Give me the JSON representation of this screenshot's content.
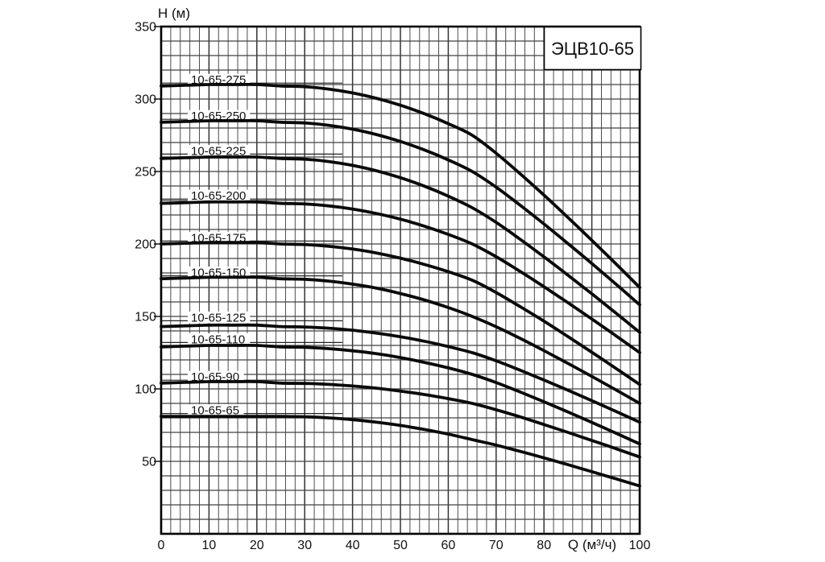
{
  "chart_data": {
    "type": "line",
    "title": "ЭЦВ10-65",
    "xlabel": "Q (м³/ч)",
    "ylabel": "H (м)",
    "xlim": [
      0,
      100
    ],
    "ylim": [
      0,
      350
    ],
    "x_ticks": [
      0,
      10,
      20,
      30,
      40,
      50,
      60,
      70,
      80,
      100
    ],
    "y_ticks": [
      50,
      100,
      150,
      200,
      250,
      300,
      350
    ],
    "grid": {
      "on": true,
      "x_minor_step": 2,
      "x_major_step": 10,
      "y_step": 10
    },
    "legend_position": "inline curve labels above each curve",
    "x_values": [
      0,
      5,
      10,
      15,
      20,
      25,
      30,
      35,
      40,
      45,
      50,
      55,
      60,
      65,
      70,
      75,
      80,
      85,
      90,
      95,
      100
    ],
    "series": [
      {
        "name": "10-65-275",
        "label_h": 311,
        "values": [
          309,
          309.5,
          310,
          310,
          310,
          309,
          308.5,
          306.9,
          304.2,
          300.5,
          295.7,
          289.9,
          283,
          275,
          262.6,
          248.5,
          233.7,
          218.3,
          202.5,
          186.4,
          170
        ]
      },
      {
        "name": "10-65-250",
        "label_h": 286,
        "values": [
          284,
          284.5,
          285,
          285,
          285,
          284,
          283.5,
          281.9,
          279.2,
          275.5,
          270.7,
          264.9,
          258,
          250,
          239.2,
          226.8,
          213.8,
          200.3,
          186.5,
          172.4,
          158
        ]
      },
      {
        "name": "10-65-225",
        "label_h": 262,
        "values": [
          259,
          259.5,
          260,
          260,
          260,
          259,
          258.5,
          256.9,
          254.2,
          250.5,
          245.7,
          239.9,
          233,
          225,
          214.9,
          203.3,
          191.1,
          178.5,
          165.6,
          152.4,
          139
        ]
      },
      {
        "name": "10-65-200",
        "label_h": 231,
        "values": [
          228,
          228.5,
          229,
          229,
          229,
          228,
          227.6,
          226.3,
          224.1,
          221,
          217.1,
          212.3,
          206.6,
          200,
          191.2,
          181.1,
          170.5,
          159.5,
          148.2,
          136.7,
          125
        ]
      },
      {
        "name": "10-65-175",
        "label_h": 202,
        "values": [
          200,
          200.5,
          201,
          201,
          201,
          200,
          199.6,
          198.4,
          196.5,
          193.8,
          190.2,
          185.9,
          180.9,
          175,
          166.5,
          156.8,
          146.7,
          136.1,
          125.3,
          114.2,
          103
        ]
      },
      {
        "name": "10-65-150",
        "label_h": 178,
        "values": [
          176,
          176.5,
          177,
          177,
          177,
          176,
          175.6,
          174.4,
          172.3,
          169.5,
          165.8,
          161.4,
          156.1,
          150,
          142.9,
          134.9,
          126.4,
          117.6,
          108.6,
          99.4,
          90
        ]
      },
      {
        "name": "10-65-125",
        "label_h": 147,
        "values": [
          143,
          143.5,
          144,
          144,
          144,
          143,
          142.7,
          141.9,
          140.5,
          138.5,
          136,
          132.9,
          129.2,
          125,
          119.4,
          112.9,
          106.1,
          99.1,
          91.9,
          84.5,
          77
        ]
      },
      {
        "name": "10-65-110",
        "label_h": 132,
        "values": [
          129,
          129.5,
          130,
          130,
          130,
          129,
          128.7,
          127.8,
          126.3,
          124.3,
          121.6,
          118.3,
          114.5,
          110,
          104.4,
          97.9,
          91.1,
          84.1,
          76.9,
          69.5,
          62
        ]
      },
      {
        "name": "10-65-90",
        "label_h": 106,
        "values": [
          104,
          104.5,
          105,
          105,
          105,
          104,
          103.8,
          103.1,
          102,
          100.5,
          98.5,
          96.1,
          93.3,
          90,
          85.6,
          80.7,
          75.4,
          70,
          64.4,
          58.8,
          53
        ]
      },
      {
        "name": "10-65-65",
        "label_h": 83,
        "values": [
          81,
          81,
          81,
          81,
          81,
          81,
          80.8,
          80,
          78.8,
          77,
          74.8,
          72,
          68.8,
          65,
          61.2,
          56.9,
          52.4,
          47.7,
          42.9,
          38,
          33
        ]
      }
    ]
  },
  "colors": {
    "background": "#ffffff",
    "curve": "#0a0a0a",
    "grid_minor": "#4c4c4c",
    "grid_major": "#333333",
    "border": "#000000",
    "text": "#111111",
    "label_line": "#222222"
  }
}
